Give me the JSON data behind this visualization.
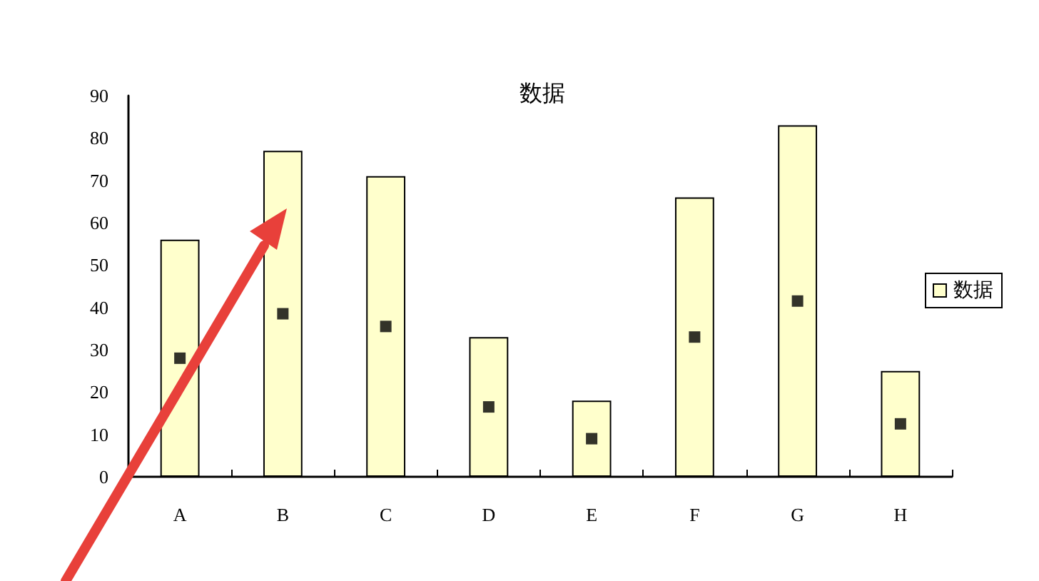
{
  "chart_data": {
    "type": "bar",
    "title": "数据",
    "categories": [
      "A",
      "B",
      "C",
      "D",
      "E",
      "F",
      "G",
      "H"
    ],
    "series": [
      {
        "name": "数据",
        "color": "#ffffcc",
        "values": [
          56,
          77,
          71,
          33,
          18,
          66,
          83,
          25
        ]
      },
      {
        "type": "scatter",
        "color": "#000000",
        "marker": "square",
        "x": [
          "A",
          "B",
          "C",
          "D",
          "E",
          "F",
          "G",
          "H"
        ],
        "values": [
          28,
          38.5,
          35.5,
          16.5,
          9,
          33,
          41.5,
          12.5
        ]
      }
    ],
    "ylim": [
      0,
      90
    ],
    "yticks": [
      0,
      10,
      20,
      30,
      40,
      50,
      60,
      70,
      80,
      90
    ],
    "grid": false,
    "legend": "right"
  }
}
